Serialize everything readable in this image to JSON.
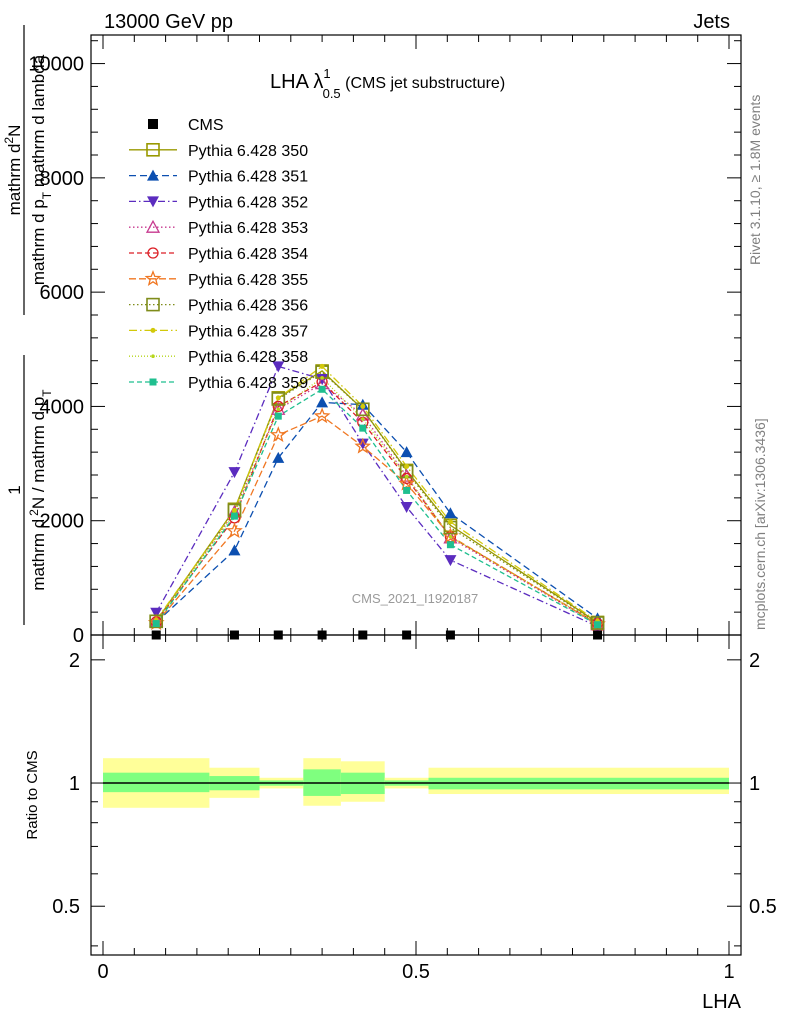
{
  "header": {
    "left": "13000 GeV pp",
    "right": "Jets"
  },
  "plot_title": {
    "main": "LHA λ",
    "sup": "1",
    "sub": "0.5",
    "tail": " (CMS jet substructure)"
  },
  "side_labels": {
    "rivet": "Rivet 3.1.10, ≥ 1.8M events",
    "mcplots": "mcplots.cern.ch [arXiv:1306.3436]"
  },
  "watermark": "CMS_2021_I1920187",
  "ylabel_main": {
    "frac_num": "1",
    "frac_den_a": "mathrm d",
    "frac_den_b": "N / mathrm d p",
    "frac_den_sub": "T",
    "num_a": "mathrm d",
    "num_sup": "2",
    "num_b": "N",
    "den_a": "mathrm d p",
    "den_sub": "T",
    "den_b": " mathrm d lambda"
  },
  "ylabel_ratio": "Ratio to CMS",
  "xlabel": "LHA",
  "x_ticks": [
    "0",
    "0.5",
    "1"
  ],
  "y_ticks_main": [
    "0",
    "2000",
    "4000",
    "6000",
    "8000",
    "10000"
  ],
  "y_ticks_ratio": [
    "0.5",
    "1",
    "2"
  ],
  "chart_data": {
    "type": "line",
    "x": [
      0.085,
      0.21,
      0.28,
      0.35,
      0.415,
      0.485,
      0.555,
      0.79
    ],
    "xlim": [
      -0.02,
      1.02
    ],
    "ylim": [
      0,
      10500
    ],
    "ratio_ylim": [
      0.38,
      2.3
    ],
    "ratio_scale": "log",
    "data": {
      "name": "CMS",
      "color": "#000000",
      "marker": "square",
      "values": [
        0,
        0,
        0,
        0,
        0,
        0,
        0,
        0
      ]
    },
    "ratio_bands": {
      "edges": [
        0,
        0.17,
        0.25,
        0.32,
        0.38,
        0.45,
        0.52,
        1.0
      ],
      "stat": [
        [
          0.95,
          1.06
        ],
        [
          0.96,
          1.04
        ],
        [
          0.985,
          1.015
        ],
        [
          0.93,
          1.08
        ],
        [
          0.94,
          1.06
        ],
        [
          0.985,
          1.015
        ],
        [
          0.965,
          1.03
        ]
      ],
      "syst": [
        [
          0.87,
          1.15
        ],
        [
          0.92,
          1.09
        ],
        [
          0.97,
          1.03
        ],
        [
          0.88,
          1.15
        ],
        [
          0.9,
          1.13
        ],
        [
          0.97,
          1.03
        ],
        [
          0.94,
          1.09
        ]
      ],
      "stat_color": "#7fff7f",
      "syst_color": "#ffff99"
    },
    "series": [
      {
        "name": "Pythia 6.428 350",
        "color": "#999900",
        "marker": "square-open",
        "dash": "none",
        "values": [
          240,
          2200,
          4150,
          4620,
          3950,
          2880,
          1920,
          220
        ]
      },
      {
        "name": "Pythia 6.428 351",
        "color": "#0c4fb0",
        "marker": "triangle-up",
        "dash": "7 4",
        "values": [
          220,
          1480,
          3100,
          4070,
          4030,
          3200,
          2130,
          290
        ]
      },
      {
        "name": "Pythia 6.428 352",
        "color": "#5b2cbf",
        "marker": "triangle-down",
        "dash": "7 3 1.5 3",
        "values": [
          390,
          2850,
          4700,
          4480,
          3350,
          2240,
          1310,
          150
        ]
      },
      {
        "name": "Pythia 6.428 353",
        "color": "#c7398f",
        "marker": "triangle-open",
        "dash": "1.5 2.5",
        "values": [
          250,
          2150,
          3950,
          4400,
          3850,
          2780,
          1700,
          180
        ]
      },
      {
        "name": "Pythia 6.428 354",
        "color": "#dc1f26",
        "marker": "circle-open",
        "dash": "5 3",
        "values": [
          230,
          2050,
          4000,
          4430,
          3720,
          2740,
          1720,
          200
        ]
      },
      {
        "name": "Pythia 6.428 355",
        "color": "#f07722",
        "marker": "star-open",
        "dash": "7 3",
        "values": [
          210,
          1820,
          3500,
          3830,
          3300,
          2650,
          1730,
          190
        ]
      },
      {
        "name": "Pythia 6.428 356",
        "color": "#7f8c1a",
        "marker": "square-open",
        "dash": "1.5 2.5",
        "values": [
          240,
          2180,
          4130,
          4600,
          3950,
          2860,
          1880,
          210
        ]
      },
      {
        "name": "Pythia 6.428 357",
        "color": "#d2c90a",
        "marker": "dot",
        "dash": "8 3 1.5 3",
        "values": [
          260,
          2180,
          4150,
          4700,
          4000,
          2950,
          1980,
          240
        ]
      },
      {
        "name": "Pythia 6.428 358",
        "color": "#b6d61b",
        "marker": "dot-small",
        "dash": "1 2",
        "values": [
          230,
          2120,
          3950,
          4500,
          3780,
          2770,
          1720,
          200
        ]
      },
      {
        "name": "Pythia 6.428 359",
        "color": "#1fbf8f",
        "marker": "square-filled",
        "dash": "5 3",
        "values": [
          200,
          2080,
          3830,
          4300,
          3620,
          2530,
          1580,
          180
        ]
      }
    ]
  }
}
